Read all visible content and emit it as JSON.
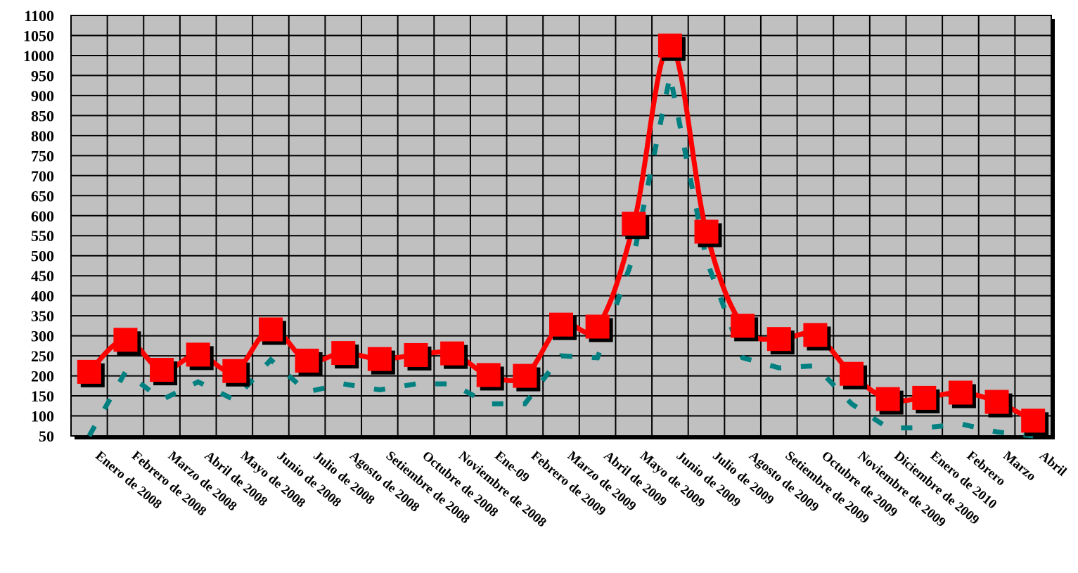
{
  "chart_data": {
    "type": "line",
    "title": "",
    "xlabel": "",
    "ylabel": "",
    "ylim": [
      50,
      1100
    ],
    "yticks": [
      50,
      100,
      150,
      200,
      250,
      300,
      350,
      400,
      450,
      500,
      550,
      600,
      650,
      700,
      750,
      800,
      850,
      900,
      950,
      1000,
      1050,
      1100
    ],
    "grid": true,
    "legend": "none",
    "categories": [
      "Enero de 2008",
      "Febrero de 2008",
      "Marzo de 2008",
      "Abril de 2008",
      "Mayo de 2008",
      "Junio de 2008",
      "Julio de 2008",
      "Agosto de 2008",
      "Setiembre de 2008",
      "Octubre de 2008",
      "Noviembre de 2008",
      "Ene-09",
      "Febrero de 2009",
      "Marzo de 2009",
      "Abril de 2009",
      "Mayo de 2009",
      "Junio de 2009",
      "Julio de 2009",
      "Agosto de 2009",
      "Setiembre de 2009",
      "Octubre de 2009",
      "Noviembre de 2009",
      "Diciembre de 2009",
      "Enero de 2010",
      "Febrero",
      "Marzo",
      "Abril"
    ],
    "series": [
      {
        "values": [
          210,
          290,
          215,
          253,
          212,
          316,
          238,
          257,
          242,
          252,
          256,
          202,
          200,
          328,
          323,
          580,
          1025,
          560,
          325,
          292,
          302,
          205,
          142,
          145,
          158,
          135,
          88
        ],
        "color": "#ff0000",
        "marker": "square"
      },
      {
        "values": [
          50,
          210,
          140,
          185,
          140,
          240,
          160,
          180,
          165,
          180,
          180,
          130,
          130,
          250,
          245,
          500,
          950,
          490,
          245,
          220,
          225,
          130,
          70,
          70,
          80,
          60,
          0
        ],
        "color": "#008080",
        "style": "dotted"
      }
    ],
    "colors": {
      "plot_background": "#c0c0c0",
      "grid": "#000000",
      "main_line": "#ff0000",
      "marker_shadow": "#000000",
      "secondary_line": "#008080"
    }
  }
}
